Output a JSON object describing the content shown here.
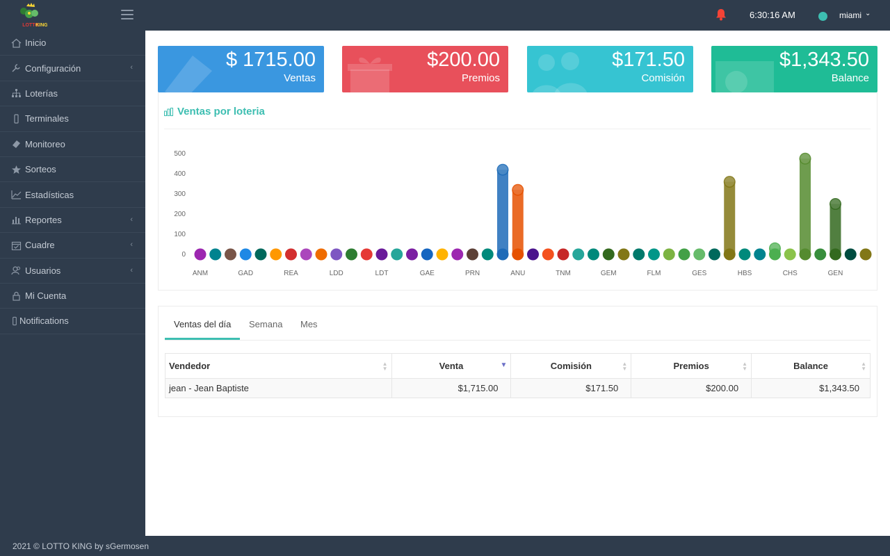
{
  "app": {
    "logo_text": "LOTTO KING",
    "time": "6:30:16 AM",
    "user": "miami"
  },
  "sidebar": {
    "items": [
      {
        "label": "Inicio",
        "icon": "home-icon",
        "caret": false
      },
      {
        "label": "Configuración",
        "icon": "wrench-icon",
        "caret": true
      },
      {
        "label": "Loterías",
        "icon": "sitemap-icon",
        "caret": false
      },
      {
        "label": "Terminales",
        "icon": "mobile-icon",
        "caret": false
      },
      {
        "label": "Monitoreo",
        "icon": "ticket-icon",
        "caret": false
      },
      {
        "label": "Sorteos",
        "icon": "star-icon",
        "caret": false
      },
      {
        "label": "Estadísticas",
        "icon": "line-chart-icon",
        "caret": false
      },
      {
        "label": "Reportes",
        "icon": "bar-chart-icon",
        "caret": true
      },
      {
        "label": "Cuadre",
        "icon": "calendar-check-icon",
        "caret": true
      },
      {
        "label": "Usuarios",
        "icon": "users-icon",
        "caret": true
      },
      {
        "label": "Mi Cuenta",
        "icon": "lock-icon",
        "caret": false
      },
      {
        "label": "Notifications",
        "icon": "mobile-icon",
        "caret": false
      }
    ]
  },
  "stats": [
    {
      "amount": "$ 1715.00",
      "label": "Ventas",
      "color": "#3a97e0"
    },
    {
      "amount": "$200.00",
      "label": "Premios",
      "color": "#e8505b"
    },
    {
      "amount": "$171.50",
      "label": "Comisión",
      "color": "#36c4d2"
    },
    {
      "amount": "$1,343.50",
      "label": "Balance",
      "color": "#1fbc96"
    }
  ],
  "chart_title": "Ventas por loteria",
  "chart_data": {
    "type": "bar",
    "title": "Ventas por loteria",
    "ylim": [
      0,
      500
    ],
    "yticks": [
      0,
      100,
      200,
      300,
      400,
      500
    ],
    "x_tick_labels": [
      "ANM",
      "GAD",
      "REA",
      "LDD",
      "LDT",
      "GAE",
      "PRN",
      "ANU",
      "TNM",
      "GEM",
      "FLM",
      "GES",
      "HBS",
      "CHS",
      "GEN"
    ],
    "values": [
      0,
      0,
      0,
      0,
      0,
      0,
      0,
      0,
      0,
      0,
      0,
      0,
      0,
      0,
      0,
      0,
      0,
      0,
      0,
      0,
      420,
      320,
      0,
      0,
      0,
      0,
      0,
      0,
      0,
      0,
      0,
      0,
      0,
      0,
      0,
      360,
      0,
      0,
      30,
      0,
      475,
      0,
      250,
      0,
      0
    ],
    "colors": [
      "#9c27b0",
      "#00838f",
      "#795548",
      "#1e88e5",
      "#00695c",
      "#ff9800",
      "#d32f2f",
      "#ab47bc",
      "#ef6c00",
      "#7e57c2",
      "#2e7d32",
      "#e53935",
      "#6a1b9a",
      "#26a69a",
      "#7b1fa2",
      "#1565c0",
      "#ffb300",
      "#9c27b0",
      "#5d4037",
      "#00897b",
      "#1e6bb8",
      "#e65100",
      "#4a148c",
      "#f4511e",
      "#c62828",
      "#26a69a",
      "#00897b",
      "#33691e",
      "#827717",
      "#00796b",
      "#009688",
      "#7cb342",
      "#43a047",
      "#66bb6a",
      "#00695c",
      "#827717",
      "#00897b",
      "#00838f",
      "#4caf50",
      "#8bc34a",
      "#558b2f",
      "#388e3c",
      "#33691e",
      "#004d40",
      "#827717"
    ]
  },
  "tabs": [
    "Ventas del día",
    "Semana",
    "Mes"
  ],
  "table": {
    "headers": [
      "Vendedor",
      "Venta",
      "Comisión",
      "Premios",
      "Balance"
    ],
    "rows": [
      [
        "jean - Jean Baptiste",
        "$1,715.00",
        "$171.50",
        "$200.00",
        "$1,343.50"
      ]
    ]
  },
  "footer": "2021 © LOTTO KING by sGermosen"
}
